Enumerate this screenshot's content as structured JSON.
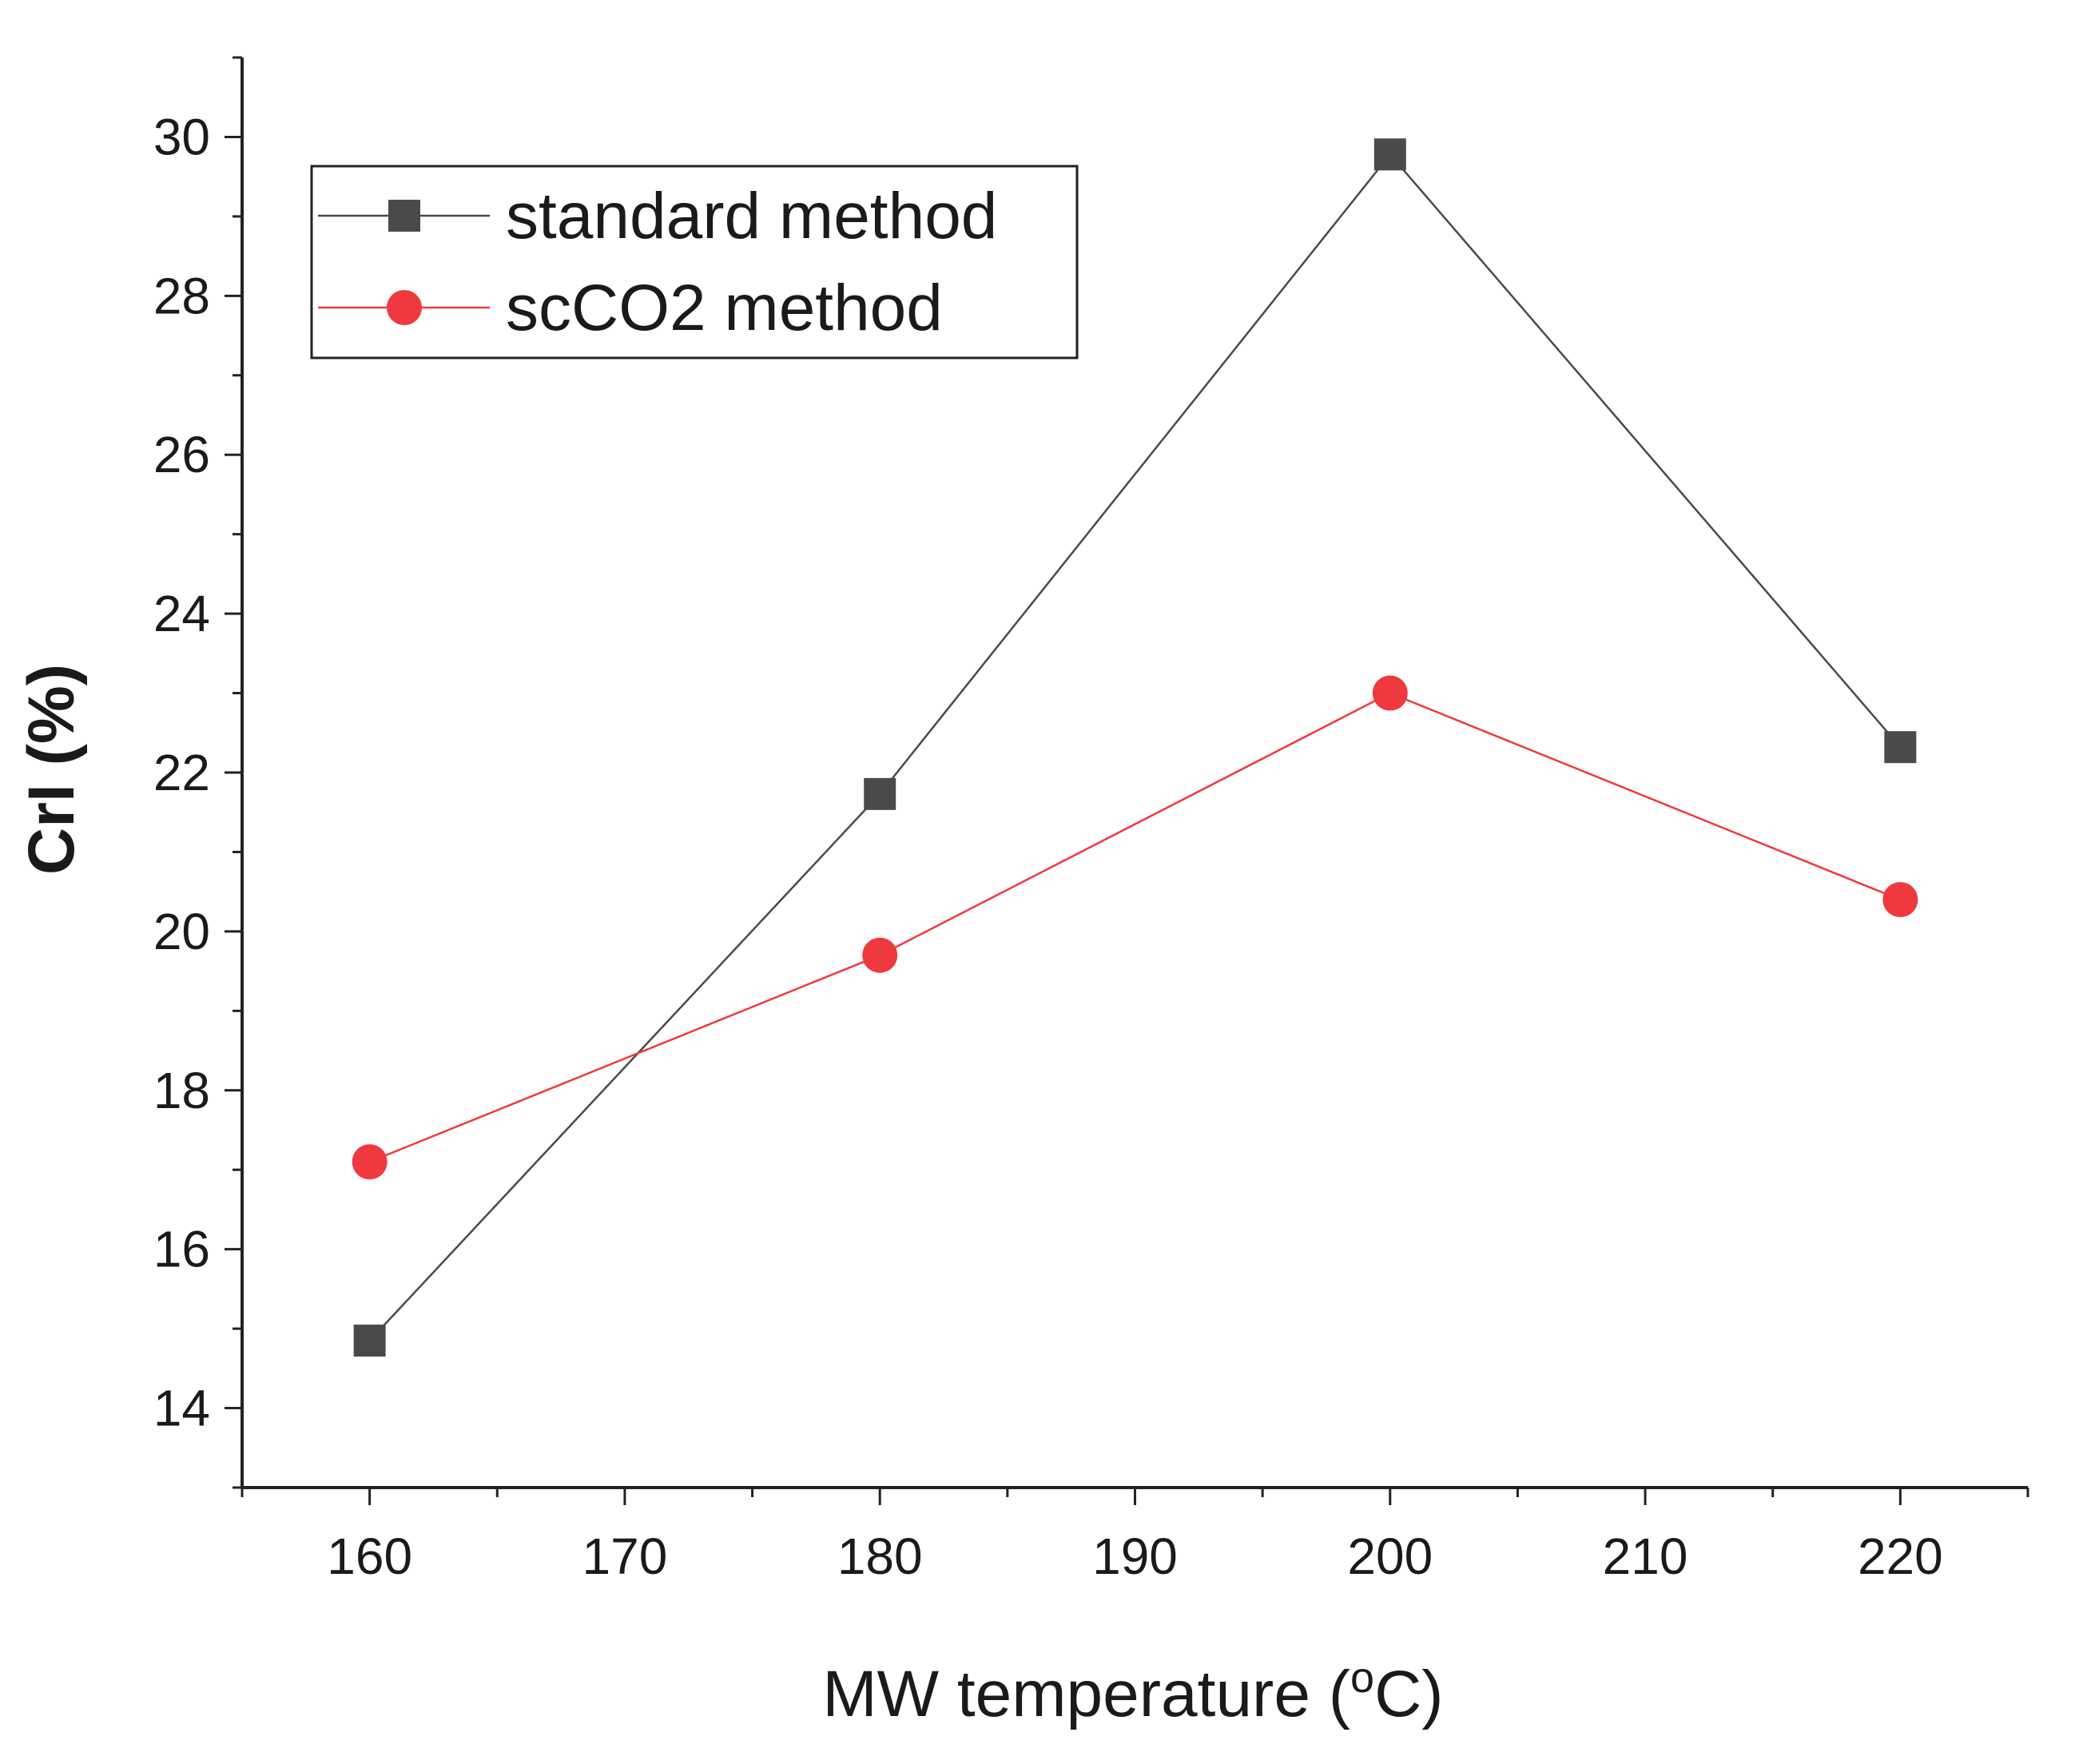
{
  "chart_data": {
    "type": "line",
    "title": "",
    "xlabel": "MW temperature (°C)",
    "xlabel_prefix": "MW temperature (",
    "xlabel_super": "o",
    "xlabel_suffix": "C)",
    "ylabel": "CrI (%)",
    "xlim": [
      155,
      225
    ],
    "ylim": [
      13,
      31
    ],
    "x_ticks": [
      160,
      170,
      180,
      190,
      200,
      210,
      220
    ],
    "y_ticks": [
      14,
      16,
      18,
      20,
      22,
      24,
      26,
      28,
      30
    ],
    "grid": false,
    "legend_position": "top-left",
    "x": [
      160,
      180,
      200,
      220
    ],
    "series": [
      {
        "name": "standard method",
        "marker": "square",
        "color": "#4a4a4a",
        "values": [
          14.85,
          21.73,
          29.78,
          22.32
        ]
      },
      {
        "name": "scCO2 method",
        "marker": "circle",
        "color": "#f0383f",
        "values": [
          17.1,
          19.7,
          23.0,
          20.4
        ]
      }
    ]
  }
}
